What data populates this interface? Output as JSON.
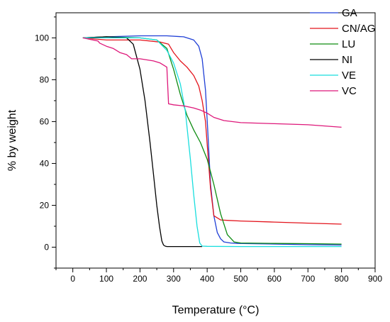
{
  "chart_data": {
    "type": "line",
    "title": "",
    "xlabel": "Temperature (°C)",
    "ylabel": "% by weight",
    "xlim": [
      -50,
      900
    ],
    "ylim": [
      -10,
      112
    ],
    "xticks": [
      0,
      100,
      200,
      300,
      400,
      500,
      600,
      700,
      800,
      900
    ],
    "yticks": [
      0,
      20,
      40,
      60,
      80,
      100
    ],
    "grid": false,
    "legend_position": "top-right",
    "series": [
      {
        "name": "GA",
        "color": "#1f3fd6",
        "x": [
          30,
          100,
          200,
          280,
          330,
          360,
          375,
          385,
          395,
          402,
          410,
          420,
          430,
          440,
          450,
          470,
          490,
          600,
          700,
          800
        ],
        "y": [
          100,
          100.5,
          101,
          101,
          100.5,
          99,
          96,
          90,
          75,
          55,
          30,
          15,
          7,
          4,
          2.5,
          2,
          1.8,
          1.5,
          1.2,
          1.0
        ]
      },
      {
        "name": "CN/AG",
        "color": "#e3141c",
        "x": [
          30,
          100,
          200,
          260,
          285,
          300,
          320,
          340,
          360,
          375,
          385,
          395,
          402,
          410,
          420,
          440,
          460,
          500,
          600,
          700,
          800
        ],
        "y": [
          100,
          99,
          99,
          98,
          97,
          93,
          89,
          86,
          82,
          77,
          70,
          60,
          45,
          28,
          15,
          13,
          12.8,
          12.5,
          12,
          11.5,
          11
        ]
      },
      {
        "name": "LU",
        "color": "#0e8c12",
        "x": [
          30,
          100,
          200,
          250,
          280,
          300,
          320,
          340,
          360,
          380,
          400,
          420,
          440,
          460,
          480,
          500,
          600,
          700,
          800
        ],
        "y": [
          100,
          100.5,
          100,
          99,
          95,
          85,
          73,
          63,
          56,
          50,
          42,
          30,
          16,
          6,
          2.5,
          2,
          1.8,
          1.7,
          1.5
        ]
      },
      {
        "name": "NI",
        "color": "#000000",
        "x": [
          30,
          100,
          160,
          180,
          200,
          215,
          230,
          240,
          250,
          258,
          265,
          270,
          275,
          280,
          300,
          350,
          385
        ],
        "y": [
          100,
          100.5,
          100,
          97,
          85,
          70,
          50,
          35,
          20,
          10,
          3,
          1,
          0.5,
          0.3,
          0.3,
          0.3,
          0.3
        ]
      },
      {
        "name": "VE",
        "color": "#19dede",
        "x": [
          30,
          100,
          200,
          250,
          280,
          300,
          320,
          335,
          350,
          360,
          370,
          378,
          385,
          400,
          500,
          600,
          700,
          800
        ],
        "y": [
          100,
          100,
          100,
          99,
          94,
          88,
          78,
          65,
          42,
          25,
          10,
          2,
          0.5,
          0.4,
          0.3,
          0.3,
          0.3,
          0.3
        ]
      },
      {
        "name": "VC",
        "color": "#de187a",
        "x": [
          30,
          60,
          75,
          80,
          100,
          120,
          140,
          160,
          175,
          200,
          220,
          240,
          260,
          275,
          280,
          285,
          300,
          330,
          360,
          380,
          400,
          420,
          450,
          500,
          600,
          700,
          800
        ],
        "y": [
          100,
          99,
          98.5,
          97.5,
          96,
          95,
          93,
          92,
          90,
          90,
          89.5,
          89,
          88,
          86.5,
          86,
          68.5,
          68,
          67.5,
          66.5,
          65.5,
          64,
          62,
          60.5,
          59.5,
          59,
          58.5,
          57.3
        ]
      }
    ]
  }
}
